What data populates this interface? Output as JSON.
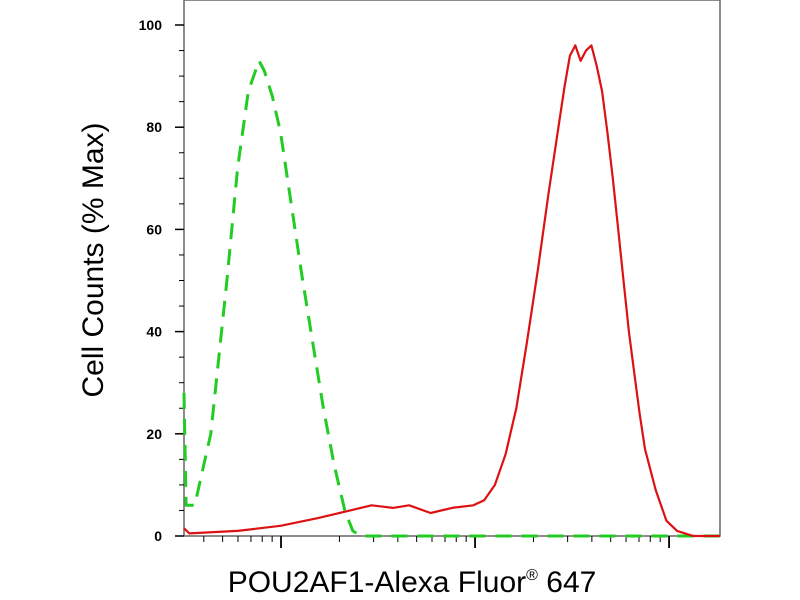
{
  "chart_data": {
    "type": "line",
    "ylabel": "Cell Counts (% Max)",
    "xlabel": "POU2AF1-Alexa Fluor",
    "xlabel_superscript": "®",
    "xlabel_suffix": " 647",
    "y_ticks": [
      "0",
      "20",
      "40",
      "60",
      "80",
      "100"
    ],
    "ylim": [
      0,
      100
    ],
    "x_scale": "log",
    "x_ticks_labeled": false,
    "grid": false,
    "legend": "none",
    "series": [
      {
        "color": "#22cc22",
        "style": "dashed",
        "points": [
          [
            0.0,
            28
          ],
          [
            0.004,
            6
          ],
          [
            0.02,
            6
          ],
          [
            0.05,
            20
          ],
          [
            0.08,
            50
          ],
          [
            0.1,
            72
          ],
          [
            0.12,
            87
          ],
          [
            0.14,
            93
          ],
          [
            0.15,
            91
          ],
          [
            0.165,
            86
          ],
          [
            0.18,
            79
          ],
          [
            0.2,
            65
          ],
          [
            0.22,
            51
          ],
          [
            0.24,
            38
          ],
          [
            0.26,
            25
          ],
          [
            0.28,
            14
          ],
          [
            0.3,
            5
          ],
          [
            0.315,
            1
          ],
          [
            0.33,
            0
          ],
          [
            1.0,
            0
          ]
        ]
      },
      {
        "color": "#dd1111",
        "style": "solid",
        "points": [
          [
            0.0,
            1.5
          ],
          [
            0.01,
            0.5
          ],
          [
            0.1,
            1
          ],
          [
            0.18,
            2
          ],
          [
            0.25,
            3.5
          ],
          [
            0.31,
            5
          ],
          [
            0.35,
            6
          ],
          [
            0.39,
            5.5
          ],
          [
            0.42,
            6
          ],
          [
            0.46,
            4.5
          ],
          [
            0.5,
            5.5
          ],
          [
            0.54,
            6
          ],
          [
            0.56,
            7
          ],
          [
            0.58,
            10
          ],
          [
            0.6,
            16
          ],
          [
            0.62,
            25
          ],
          [
            0.64,
            38
          ],
          [
            0.66,
            52
          ],
          [
            0.68,
            67
          ],
          [
            0.7,
            81
          ],
          [
            0.71,
            88
          ],
          [
            0.72,
            94
          ],
          [
            0.73,
            96
          ],
          [
            0.74,
            93
          ],
          [
            0.75,
            95
          ],
          [
            0.76,
            96
          ],
          [
            0.77,
            92
          ],
          [
            0.78,
            87
          ],
          [
            0.79,
            79
          ],
          [
            0.8,
            70
          ],
          [
            0.81,
            60
          ],
          [
            0.82,
            50
          ],
          [
            0.83,
            40
          ],
          [
            0.84,
            32
          ],
          [
            0.85,
            24
          ],
          [
            0.86,
            17
          ],
          [
            0.88,
            9
          ],
          [
            0.9,
            3
          ],
          [
            0.92,
            1
          ],
          [
            0.95,
            0
          ],
          [
            1.0,
            0
          ]
        ]
      }
    ]
  }
}
